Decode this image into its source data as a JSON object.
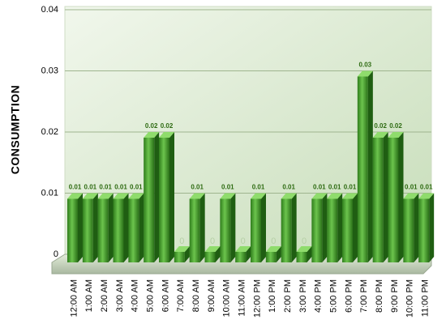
{
  "chart_data": {
    "type": "bar3d",
    "y_label": "CONSUMPTION",
    "categories": [
      "12:00 AM",
      "1:00 AM",
      "2:00 AM",
      "3:00 AM",
      "4:00 AM",
      "5:00 AM",
      "6:00 AM",
      "7:00 AM",
      "8:00 AM",
      "9:00 AM",
      "10:00 AM",
      "11:00 AM",
      "12:00 PM",
      "1:00 PM",
      "2:00 PM",
      "3:00 PM",
      "4:00 PM",
      "5:00 PM",
      "6:00 PM",
      "7:00 PM",
      "8:00 PM",
      "9:00 PM",
      "10:00 PM",
      "11:00 PM"
    ],
    "values": [
      0.01,
      0.01,
      0.01,
      0.01,
      0.01,
      0.02,
      0.02,
      0,
      0.01,
      0,
      0.01,
      0,
      0.01,
      0,
      0.01,
      0,
      0.01,
      0.01,
      0.01,
      0.03,
      0.02,
      0.02,
      0.01,
      0.01
    ],
    "color": "#3f9b2a",
    "ylim": [
      0,
      0.04
    ],
    "yticks": [
      0,
      0.01,
      0.02,
      0.03,
      0.04
    ],
    "grid": true
  }
}
